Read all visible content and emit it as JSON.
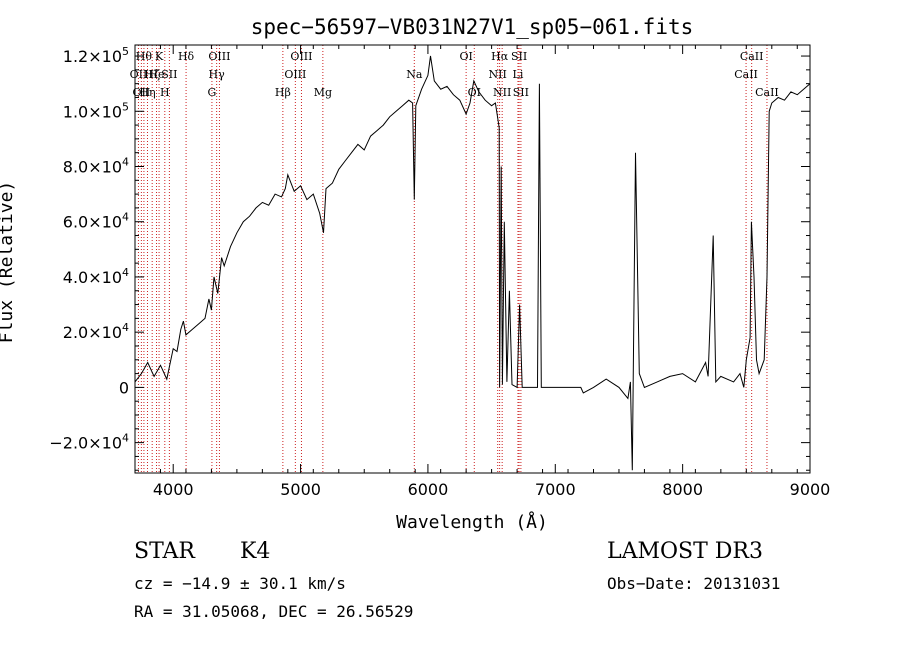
{
  "chart_data": {
    "type": "line",
    "title": "spec−56597−VB031N27V1_sp05−061.fits",
    "xlabel": "Wavelength (Å)",
    "ylabel": "Flux (Relative)",
    "xlim": [
      3700,
      9000
    ],
    "ylim": [
      -31000,
      124000
    ],
    "x_ticks": [
      {
        "v": 4000,
        "label": "4000"
      },
      {
        "v": 5000,
        "label": "5000"
      },
      {
        "v": 6000,
        "label": "6000"
      },
      {
        "v": 7000,
        "label": "7000"
      },
      {
        "v": 8000,
        "label": "8000"
      },
      {
        "v": 9000,
        "label": "9000"
      }
    ],
    "y_ticks": [
      {
        "v": -20000,
        "m": "−2.0",
        "e": "4"
      },
      {
        "v": 0,
        "m": "0",
        "e": ""
      },
      {
        "v": 20000,
        "m": "2.0",
        "e": "4"
      },
      {
        "v": 40000,
        "m": "4.0",
        "e": "4"
      },
      {
        "v": 60000,
        "m": "6.0",
        "e": "4"
      },
      {
        "v": 80000,
        "m": "8.0",
        "e": "4"
      },
      {
        "v": 100000,
        "m": "1.0",
        "e": "5"
      },
      {
        "v": 120000,
        "m": "1.2",
        "e": "5"
      }
    ],
    "series": [
      {
        "name": "spectrum",
        "points": [
          [
            3700,
            2000
          ],
          [
            3750,
            5000
          ],
          [
            3800,
            9000
          ],
          [
            3850,
            4000
          ],
          [
            3900,
            8000
          ],
          [
            3950,
            3000
          ],
          [
            4000,
            14000
          ],
          [
            4030,
            13000
          ],
          [
            4060,
            21000
          ],
          [
            4080,
            24000
          ],
          [
            4100,
            19000
          ],
          [
            4150,
            21000
          ],
          [
            4200,
            23000
          ],
          [
            4250,
            25000
          ],
          [
            4280,
            32000
          ],
          [
            4300,
            28000
          ],
          [
            4320,
            40000
          ],
          [
            4350,
            34000
          ],
          [
            4380,
            47000
          ],
          [
            4400,
            44000
          ],
          [
            4450,
            51000
          ],
          [
            4500,
            56000
          ],
          [
            4550,
            60000
          ],
          [
            4600,
            62000
          ],
          [
            4650,
            65000
          ],
          [
            4700,
            67000
          ],
          [
            4750,
            66000
          ],
          [
            4800,
            70000
          ],
          [
            4850,
            69000
          ],
          [
            4880,
            72000
          ],
          [
            4900,
            77000
          ],
          [
            4950,
            71000
          ],
          [
            5000,
            73000
          ],
          [
            5050,
            68000
          ],
          [
            5100,
            70000
          ],
          [
            5150,
            63000
          ],
          [
            5180,
            56000
          ],
          [
            5200,
            72000
          ],
          [
            5250,
            74000
          ],
          [
            5300,
            79000
          ],
          [
            5350,
            82000
          ],
          [
            5400,
            85000
          ],
          [
            5450,
            88000
          ],
          [
            5500,
            86000
          ],
          [
            5550,
            91000
          ],
          [
            5600,
            93000
          ],
          [
            5650,
            95000
          ],
          [
            5700,
            98000
          ],
          [
            5750,
            100000
          ],
          [
            5800,
            102000
          ],
          [
            5850,
            104000
          ],
          [
            5880,
            103000
          ],
          [
            5893,
            68000
          ],
          [
            5905,
            102000
          ],
          [
            5950,
            108000
          ],
          [
            6000,
            113000
          ],
          [
            6020,
            120000
          ],
          [
            6050,
            111000
          ],
          [
            6100,
            108000
          ],
          [
            6150,
            109000
          ],
          [
            6200,
            106000
          ],
          [
            6250,
            104000
          ],
          [
            6300,
            99000
          ],
          [
            6330,
            103000
          ],
          [
            6360,
            111000
          ],
          [
            6400,
            107000
          ],
          [
            6450,
            104000
          ],
          [
            6500,
            102000
          ],
          [
            6530,
            103000
          ],
          [
            6560,
            94000
          ],
          [
            6563,
            0
          ],
          [
            6575,
            80000
          ],
          [
            6585,
            1000
          ],
          [
            6600,
            60000
          ],
          [
            6620,
            2000
          ],
          [
            6640,
            35000
          ],
          [
            6660,
            1000
          ],
          [
            6700,
            0
          ],
          [
            6720,
            30000
          ],
          [
            6740,
            0
          ],
          [
            6760,
            0
          ],
          [
            6860,
            0
          ],
          [
            6875,
            110000
          ],
          [
            6890,
            0
          ],
          [
            7200,
            0
          ],
          [
            7220,
            -2000
          ],
          [
            7300,
            0
          ],
          [
            7400,
            3000
          ],
          [
            7500,
            0
          ],
          [
            7570,
            -4000
          ],
          [
            7590,
            2000
          ],
          [
            7605,
            -30000
          ],
          [
            7630,
            85000
          ],
          [
            7660,
            5000
          ],
          [
            7700,
            0
          ],
          [
            7800,
            2000
          ],
          [
            7900,
            4000
          ],
          [
            8000,
            5000
          ],
          [
            8100,
            2000
          ],
          [
            8180,
            9000
          ],
          [
            8200,
            4000
          ],
          [
            8240,
            55000
          ],
          [
            8260,
            2000
          ],
          [
            8300,
            4000
          ],
          [
            8400,
            2000
          ],
          [
            8450,
            5000
          ],
          [
            8480,
            0
          ],
          [
            8500,
            10000
          ],
          [
            8530,
            18000
          ],
          [
            8540,
            60000
          ],
          [
            8560,
            40000
          ],
          [
            8580,
            10000
          ],
          [
            8600,
            5000
          ],
          [
            8640,
            10000
          ],
          [
            8662,
            40000
          ],
          [
            8680,
            100000
          ],
          [
            8700,
            103000
          ],
          [
            8750,
            105000
          ],
          [
            8800,
            104000
          ],
          [
            8850,
            107000
          ],
          [
            8900,
            106000
          ],
          [
            8950,
            108000
          ],
          [
            9000,
            110000
          ]
        ]
      }
    ],
    "line_markers": [
      {
        "lambda": 3727,
        "label": "OII",
        "row": 1
      },
      {
        "lambda": 3750,
        "label": "OII",
        "row": 2
      },
      {
        "lambda": 3770,
        "label": "Hθ",
        "row": 0
      },
      {
        "lambda": 3798,
        "label": "Hη",
        "row": 2
      },
      {
        "lambda": 3835,
        "label": "Hζ",
        "row": 1
      },
      {
        "lambda": 3869,
        "label": "He",
        "row": 1
      },
      {
        "lambda": 3889,
        "label": "K",
        "row": 0
      },
      {
        "lambda": 3934,
        "label": "H",
        "row": 2
      },
      {
        "lambda": 3970,
        "label": "SII",
        "row": 1
      },
      {
        "lambda": 4101,
        "label": "Hδ",
        "row": 0
      },
      {
        "lambda": 4304,
        "label": "G",
        "row": 2
      },
      {
        "lambda": 4341,
        "label": "Hγ",
        "row": 1
      },
      {
        "lambda": 4363,
        "label": "OIII",
        "row": 0
      },
      {
        "lambda": 4861,
        "label": "Hβ",
        "row": 2
      },
      {
        "lambda": 4959,
        "label": "OIII",
        "row": 1
      },
      {
        "lambda": 5007,
        "label": "OIII",
        "row": 0
      },
      {
        "lambda": 5175,
        "label": "Mg",
        "row": 2
      },
      {
        "lambda": 5893,
        "label": "Na",
        "row": 1
      },
      {
        "lambda": 6300,
        "label": "OI",
        "row": 0
      },
      {
        "lambda": 6364,
        "label": "OI",
        "row": 2
      },
      {
        "lambda": 6548,
        "label": "NII",
        "row": 1
      },
      {
        "lambda": 6563,
        "label": "Hα",
        "row": 0
      },
      {
        "lambda": 6583,
        "label": "NII",
        "row": 2
      },
      {
        "lambda": 6707,
        "label": "Li",
        "row": 1
      },
      {
        "lambda": 6716,
        "label": "SII",
        "row": 0
      },
      {
        "lambda": 6730,
        "label": "SII",
        "row": 2
      },
      {
        "lambda": 8498,
        "label": "CaII",
        "row": 1
      },
      {
        "lambda": 8542,
        "label": "CaII",
        "row": 0
      },
      {
        "lambda": 8662,
        "label": "CaII",
        "row": 2
      }
    ],
    "colors": {
      "marker": "#cc2222",
      "line": "#000000"
    }
  },
  "info": {
    "class": "STAR",
    "subclass": "K4",
    "survey": "LAMOST DR3",
    "cz": "cz = −14.9 ± 30.1 km/s",
    "obs_date": "Obs−Date: 20131031",
    "coords": "RA =  31.05068, DEC =  26.56529"
  }
}
